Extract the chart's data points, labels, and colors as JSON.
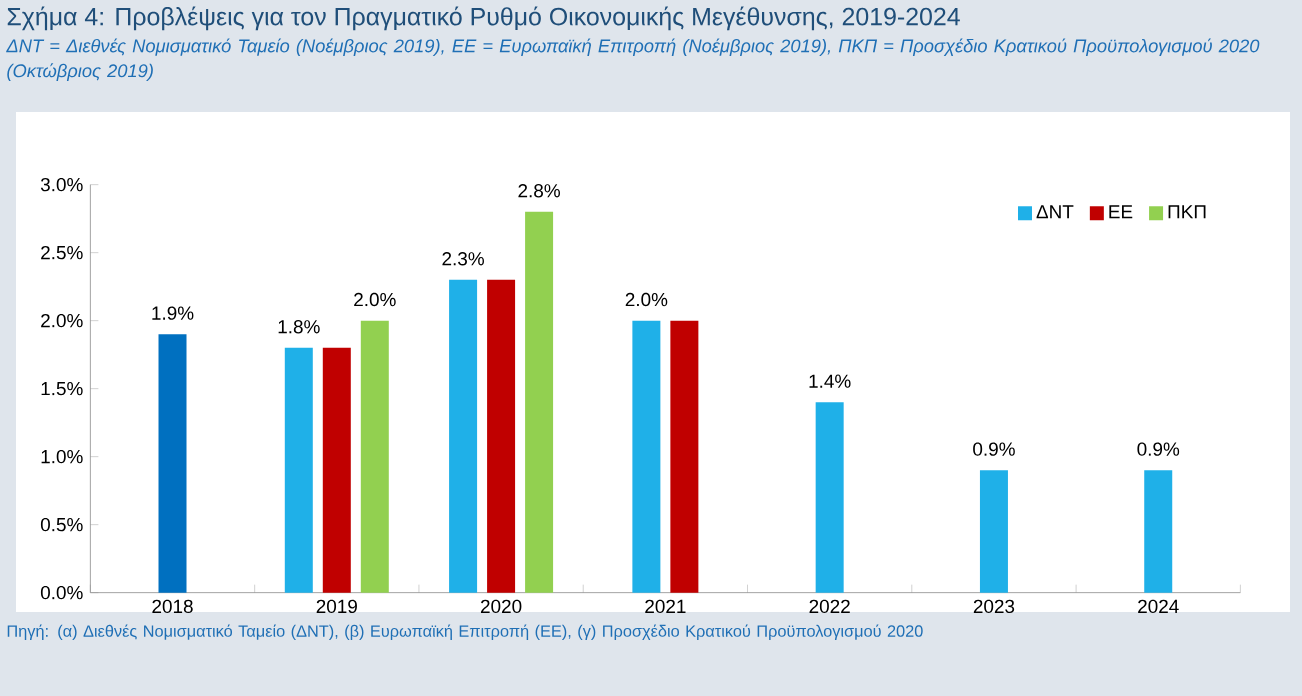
{
  "chart_data": {
    "type": "bar",
    "title": "Σχήμα 4: Προβλέψεις για τον Πραγματικό Ρυθμό Οικονομικής Μεγέθυνσης, 2019-2024",
    "subtitle": "ΔΝΤ = Διεθνές Νομισματικό Ταμείο (Νοέμβριος 2019), ΕΕ = Ευρωπαϊκή Επιτροπή (Νοέμβριος 2019), ΠΚΠ = Προσχέδιο Κρατικού Προϋπολογισμού 2020 (Οκτώβριος 2019)",
    "categories": [
      "2018",
      "2019",
      "2020",
      "2021",
      "2022",
      "2023",
      "2024"
    ],
    "series": [
      {
        "color": "#0070c0",
        "values": [
          1.9,
          null,
          null,
          null,
          null,
          null,
          null
        ],
        "value_labels": [
          "1.9%",
          null,
          null,
          null,
          null,
          null,
          null
        ]
      },
      {
        "name": "ΔΝΤ",
        "color": "#1fb0e8",
        "values": [
          null,
          1.8,
          2.3,
          2.0,
          1.4,
          0.9,
          0.9
        ],
        "value_labels": [
          null,
          "1.8%",
          "2.3%",
          "2.0%",
          "1.4%",
          "0.9%",
          "0.9%"
        ]
      },
      {
        "name": "ΕΕ",
        "color": "#c00000",
        "values": [
          null,
          1.8,
          2.3,
          2.0,
          null,
          null,
          null
        ]
      },
      {
        "name": "ΠΚΠ",
        "color": "#92d050",
        "values": [
          null,
          2.0,
          2.8,
          null,
          null,
          null,
          null
        ],
        "value_labels": [
          null,
          "2.0%",
          "2.8%",
          null,
          null,
          null,
          null
        ]
      }
    ],
    "ylim": [
      0,
      3
    ],
    "yticks": [
      {
        "value": 0,
        "label": "0.0%"
      },
      {
        "value": 0.5,
        "label": "0.5%"
      },
      {
        "value": 1,
        "label": "1.0%"
      },
      {
        "value": 1.5,
        "label": "1.5%"
      },
      {
        "value": 2,
        "label": "2.0%"
      },
      {
        "value": 2.5,
        "label": "2.5%"
      },
      {
        "value": 3,
        "label": "3.0%"
      }
    ],
    "legend": "top right",
    "annotations": [
      "Πηγή: (α) Διεθνές Νομισματικό Ταμείο (ΔΝΤ), (β) Ευρωπαϊκή Επιτροπή (ΕΕ), (γ) Προσχέδιο Κρατικού Προϋπολογισμού 2020"
    ]
  }
}
